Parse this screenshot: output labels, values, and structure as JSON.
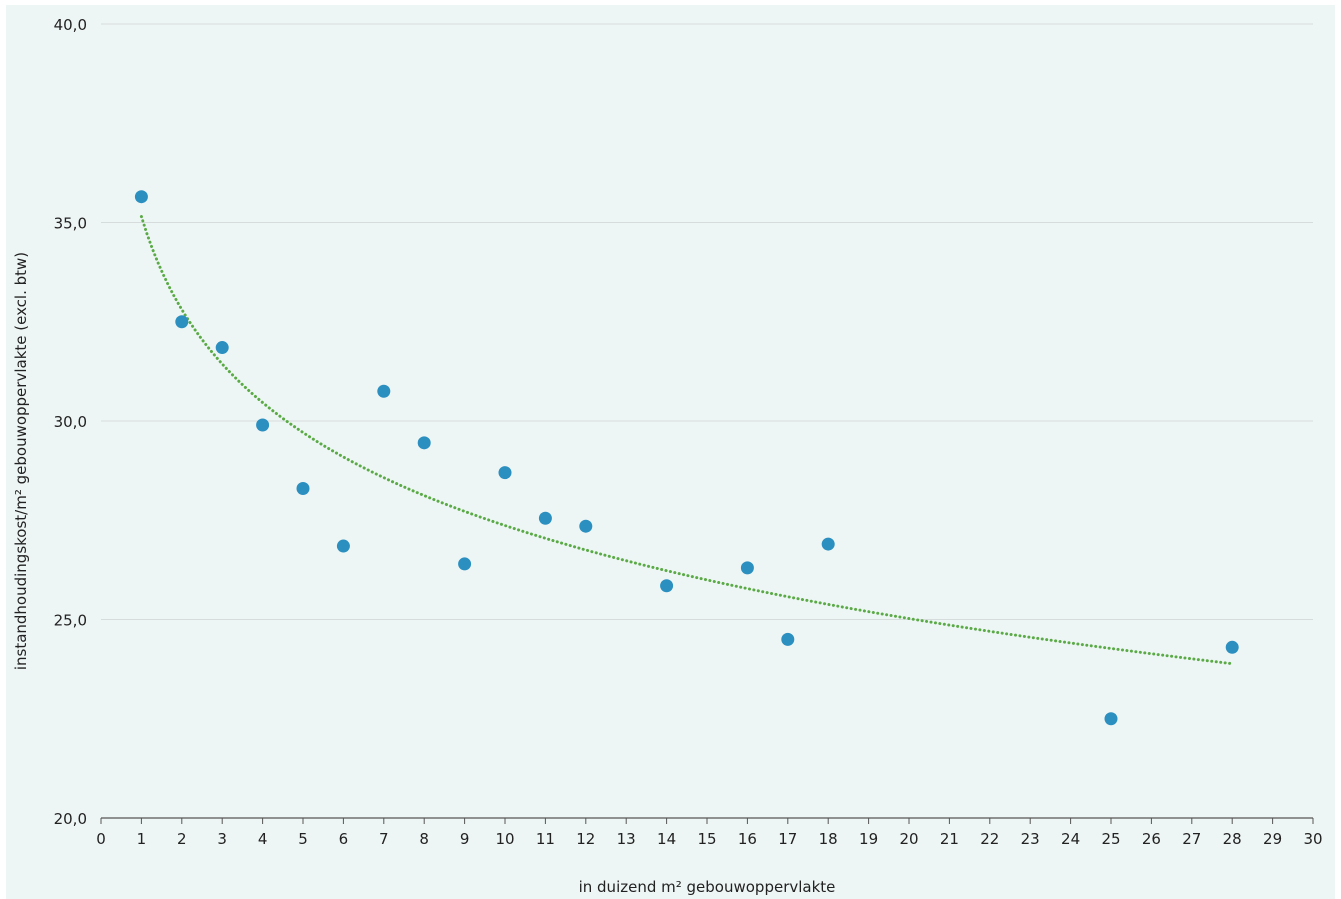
{
  "chart_data": {
    "type": "scatter",
    "title": "",
    "xlabel": "in duizend m² gebouwoppervlakte",
    "ylabel": "instandhoudingskost/m² gebouwoppervlakte (excl. btw)",
    "xlim": [
      0,
      30
    ],
    "ylim": [
      20,
      40
    ],
    "x_ticks": [
      "0",
      "1",
      "2",
      "3",
      "4",
      "5",
      "6",
      "7",
      "8",
      "9",
      "10",
      "11",
      "12",
      "13",
      "14",
      "15",
      "16",
      "17",
      "18",
      "19",
      "20",
      "21",
      "22",
      "23",
      "24",
      "25",
      "26",
      "27",
      "28",
      "29",
      "30"
    ],
    "y_ticks": [
      "20,0",
      "25,0",
      "30,0",
      "35,0",
      "40,0"
    ],
    "grid": "horizontal",
    "series": [
      {
        "type": "scatter",
        "color": "#2b8fc0",
        "points": [
          {
            "x": 1,
            "y": 35.65
          },
          {
            "x": 2,
            "y": 32.5
          },
          {
            "x": 3,
            "y": 31.85
          },
          {
            "x": 4,
            "y": 29.9
          },
          {
            "x": 5,
            "y": 28.3
          },
          {
            "x": 6,
            "y": 26.85
          },
          {
            "x": 7,
            "y": 30.75
          },
          {
            "x": 8,
            "y": 29.45
          },
          {
            "x": 9,
            "y": 26.4
          },
          {
            "x": 10,
            "y": 28.7
          },
          {
            "x": 11,
            "y": 27.55
          },
          {
            "x": 12,
            "y": 27.35
          },
          {
            "x": 14,
            "y": 25.85
          },
          {
            "x": 16,
            "y": 26.3
          },
          {
            "x": 17,
            "y": 24.5
          },
          {
            "x": 18,
            "y": 26.9
          },
          {
            "x": 25,
            "y": 22.5
          },
          {
            "x": 28,
            "y": 24.3
          }
        ]
      },
      {
        "type": "trendline",
        "kind": "logarithmic",
        "style": "dotted",
        "color": "#5aaa46",
        "a": 35.15,
        "b": -3.38,
        "x_range": [
          1,
          28
        ]
      }
    ]
  }
}
